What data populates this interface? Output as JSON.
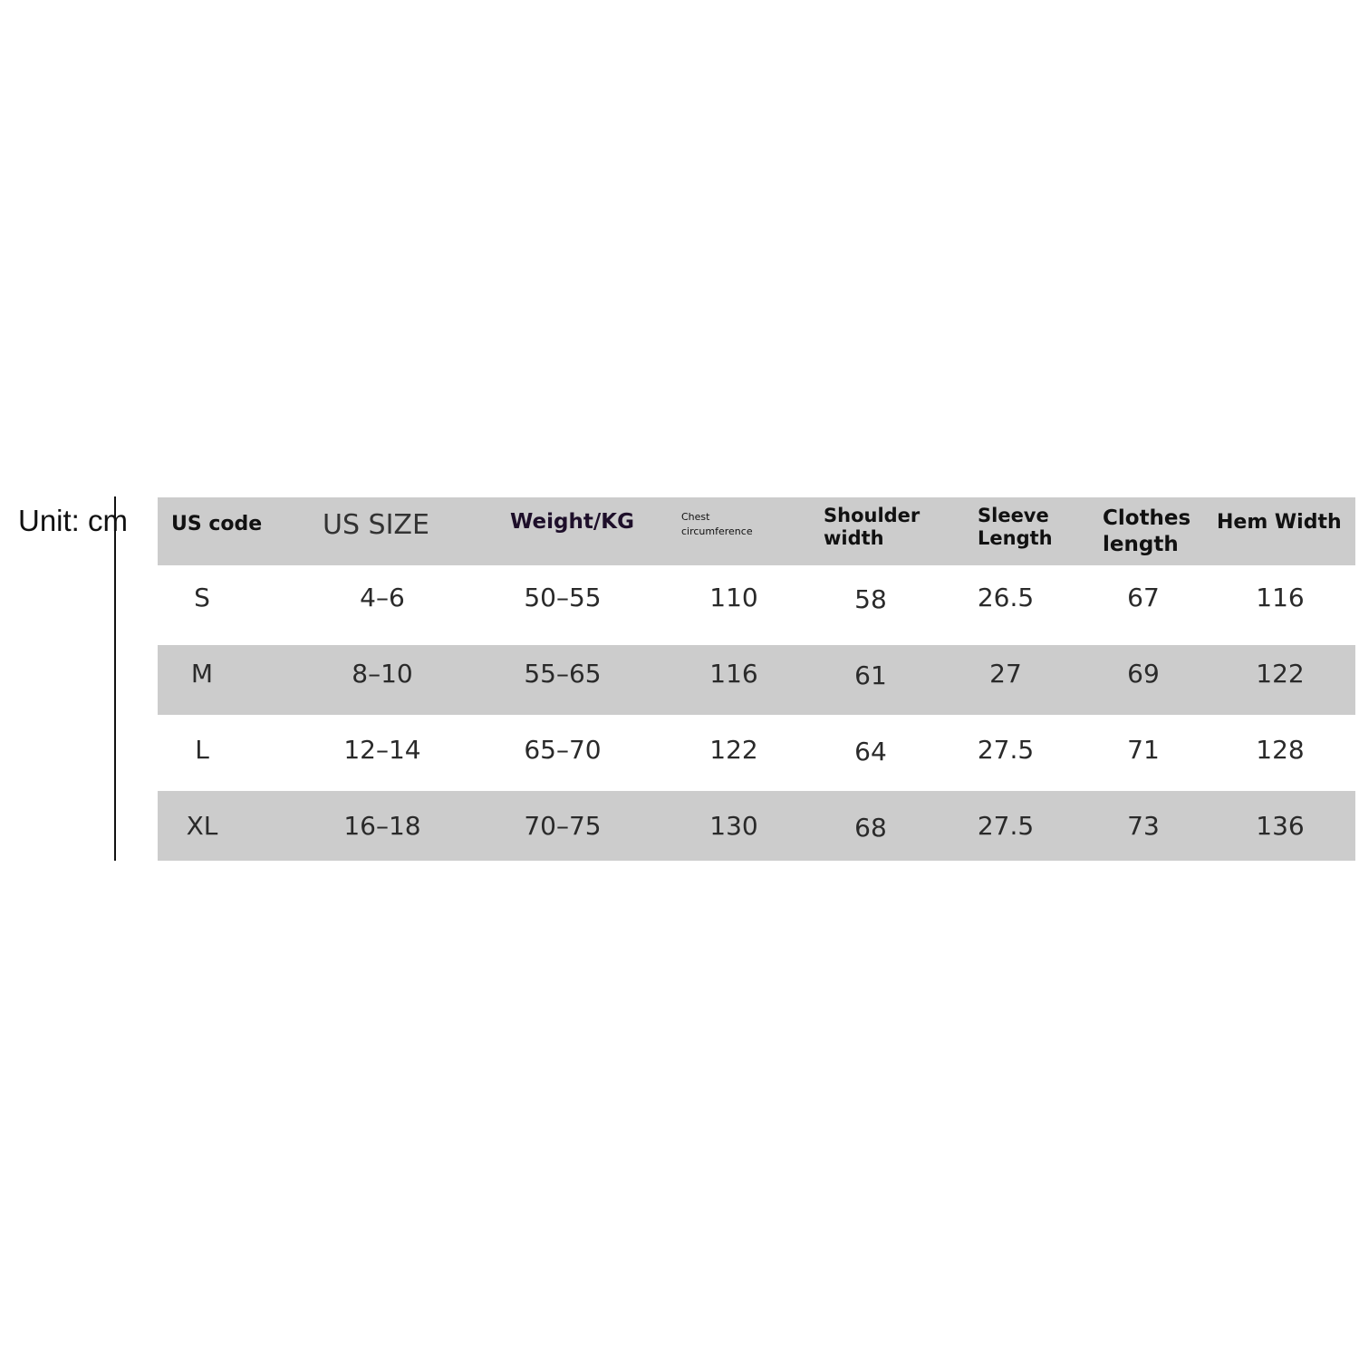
{
  "unit_label": "Unit: cm",
  "table": {
    "headers": [
      "US code",
      "US SIZE",
      "Weight/KG",
      "Chest circumference",
      "Shoulder width",
      "Sleeve Length",
      "Clothes length",
      "Hem Width"
    ],
    "rows": [
      [
        "S",
        "4–6",
        "50–55",
        "110",
        "58",
        "26.5",
        "67",
        "116"
      ],
      [
        "M",
        "8–10",
        "55–65",
        "116",
        "61",
        "27",
        "69",
        "122"
      ],
      [
        "L",
        "12–14",
        "65–70",
        "122",
        "64",
        "27.5",
        "71",
        "128"
      ],
      [
        "XL",
        "16–18",
        "70–75",
        "130",
        "68",
        "27.5",
        "73",
        "136"
      ]
    ]
  },
  "colors": {
    "band_gray": "#cccccc",
    "header_text": "#111111"
  }
}
